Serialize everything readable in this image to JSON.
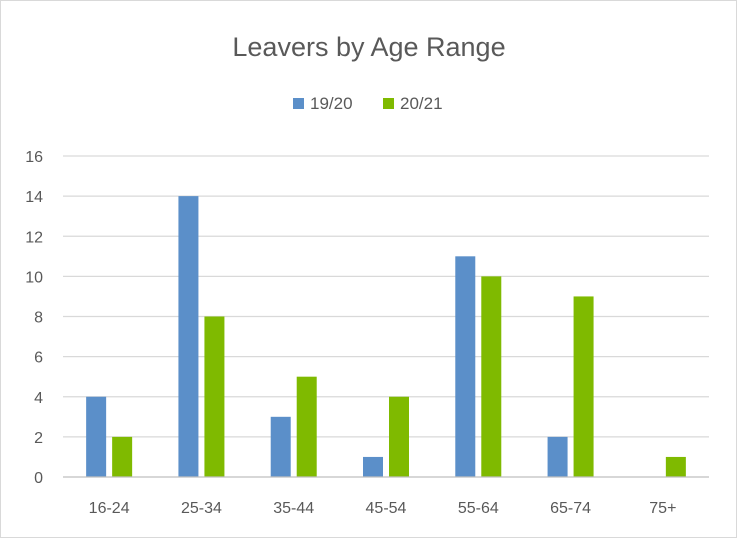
{
  "chart_data": {
    "type": "bar",
    "title": "Leavers by Age Range",
    "xlabel": "",
    "ylabel": "",
    "categories": [
      "16-24",
      "25-34",
      "35-44",
      "45-54",
      "55-64",
      "65-74",
      "75+"
    ],
    "series": [
      {
        "name": "19/20",
        "color": "#5b8fc9",
        "values": [
          4,
          14,
          3,
          1,
          11,
          2,
          0
        ]
      },
      {
        "name": "20/21",
        "color": "#7fba00",
        "values": [
          2,
          8,
          5,
          4,
          10,
          9,
          1
        ]
      }
    ],
    "ylim": [
      0,
      16
    ],
    "yticks": [
      "0",
      "2",
      "4",
      "6",
      "8",
      "10",
      "12",
      "14",
      "16"
    ],
    "grid": true,
    "legend": "top-center"
  }
}
